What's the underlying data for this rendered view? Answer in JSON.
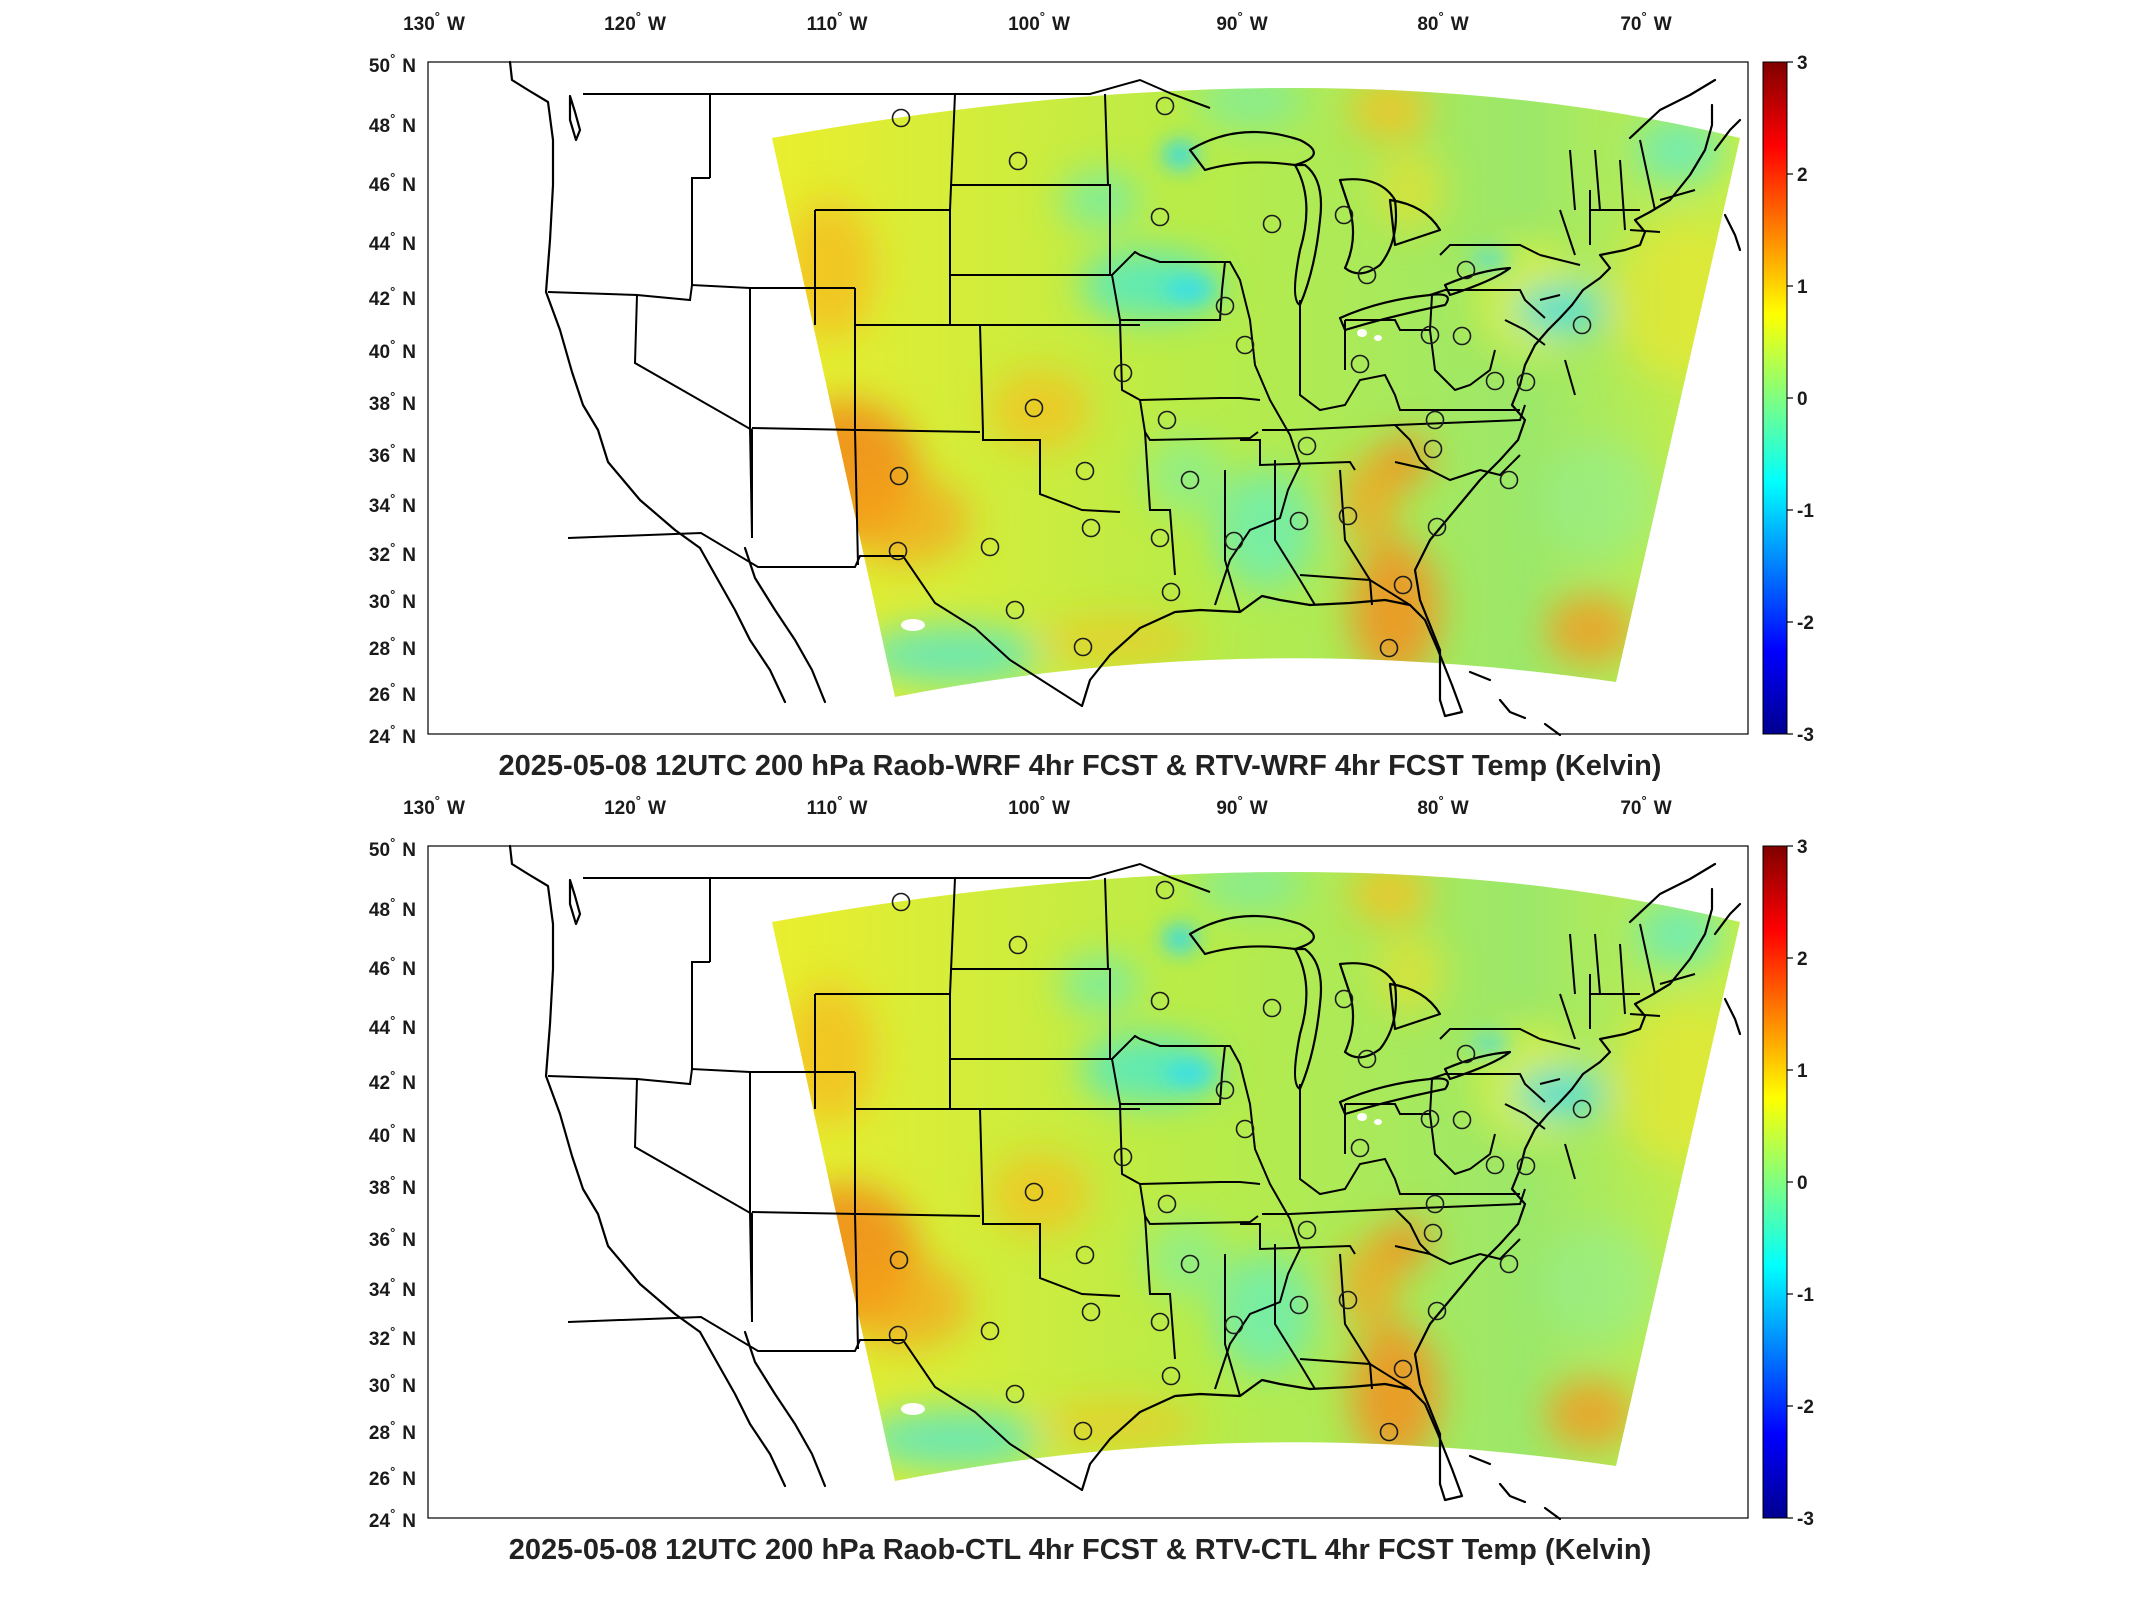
{
  "colorbar": {
    "ticks": [
      "3",
      "2",
      "1",
      "0",
      "-1",
      "-2",
      "-3"
    ],
    "colors": [
      "#00008f",
      "#0000ff",
      "#0080ff",
      "#00ffff",
      "#80ff80",
      "#ffff00",
      "#ff8000",
      "#ff0000",
      "#800000"
    ]
  },
  "axes": {
    "lon_labels": [
      "130",
      "120",
      "110",
      "100",
      "90",
      "80",
      "70"
    ],
    "lat_labels": [
      "50",
      "48",
      "46",
      "44",
      "42",
      "40",
      "38",
      "36",
      "34",
      "32",
      "30",
      "28",
      "26",
      "24"
    ],
    "lon_suffix": "W",
    "lat_suffix": "N",
    "degree": "°"
  },
  "panels": [
    {
      "title": "2025-05-08 12UTC 200 hPa Raob-WRF 4hr FCST & RTV-WRF 4hr FCST Temp (Kelvin)"
    },
    {
      "title": "2025-05-08 12UTC 200 hPa Raob-CTL 4hr FCST & RTV-CTL 4hr FCST Temp (Kelvin)"
    }
  ]
}
